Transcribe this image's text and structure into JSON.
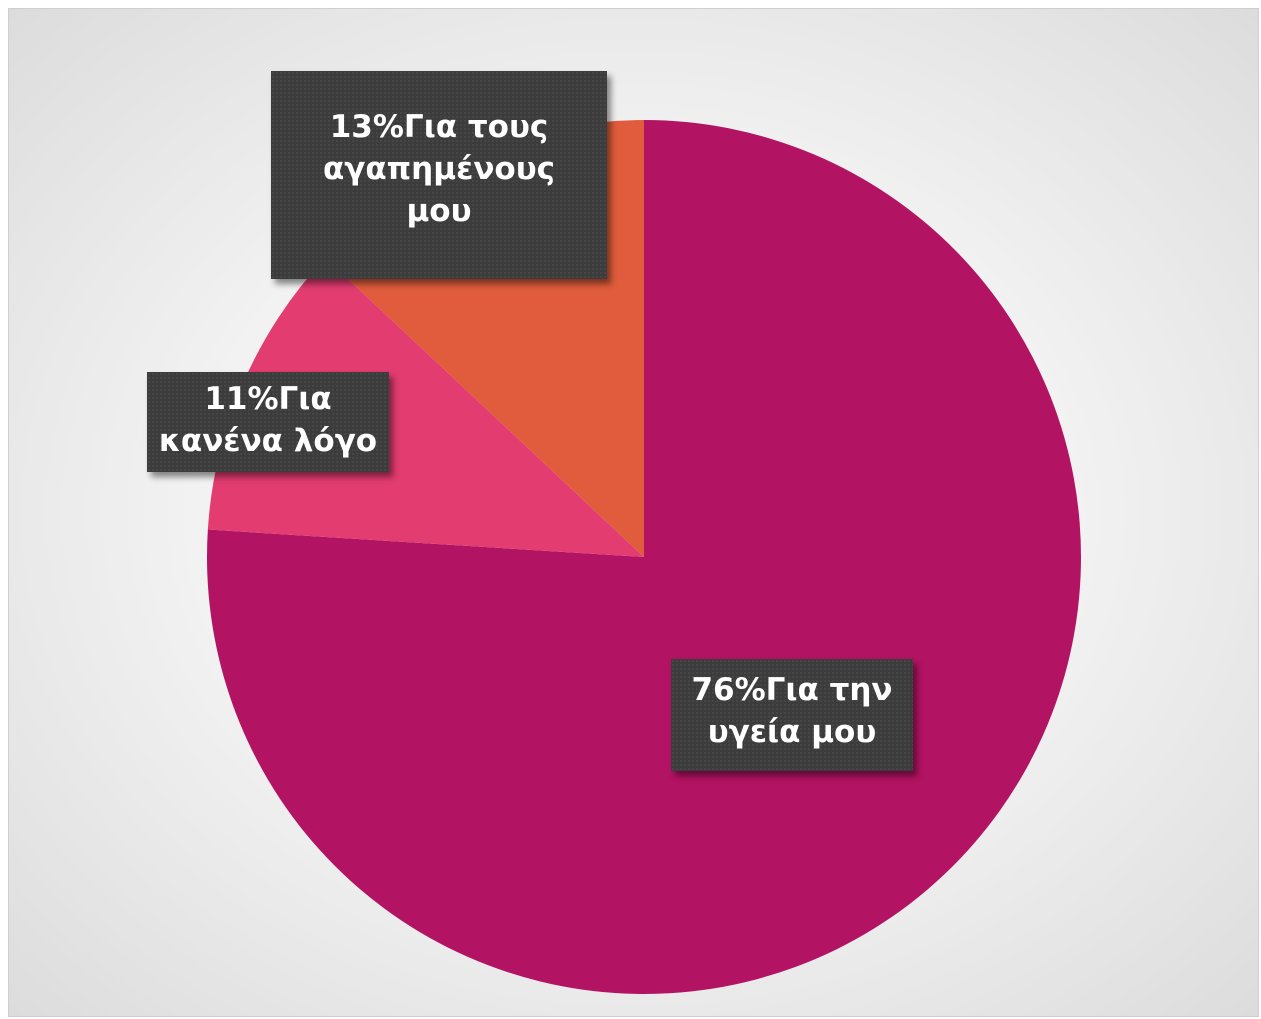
{
  "chart_data": {
    "type": "pie",
    "categories": [
      "Για την υγεία μου",
      "Για κανένα λόγο",
      "Για τους αγαπημένους μου"
    ],
    "values": [
      76,
      11,
      13
    ],
    "unit": "%",
    "title": "",
    "legend": "none",
    "colors": [
      "#b31363",
      "#e23c70",
      "#e05c3c"
    ],
    "labels": [
      {
        "lines": [
          "76%Για την",
          "υγεία μου"
        ]
      },
      {
        "lines": [
          "11%Για",
          "κανένα λόγο"
        ]
      },
      {
        "lines": [
          "13%Για τους",
          "αγαπημένους",
          "μου"
        ]
      }
    ]
  }
}
